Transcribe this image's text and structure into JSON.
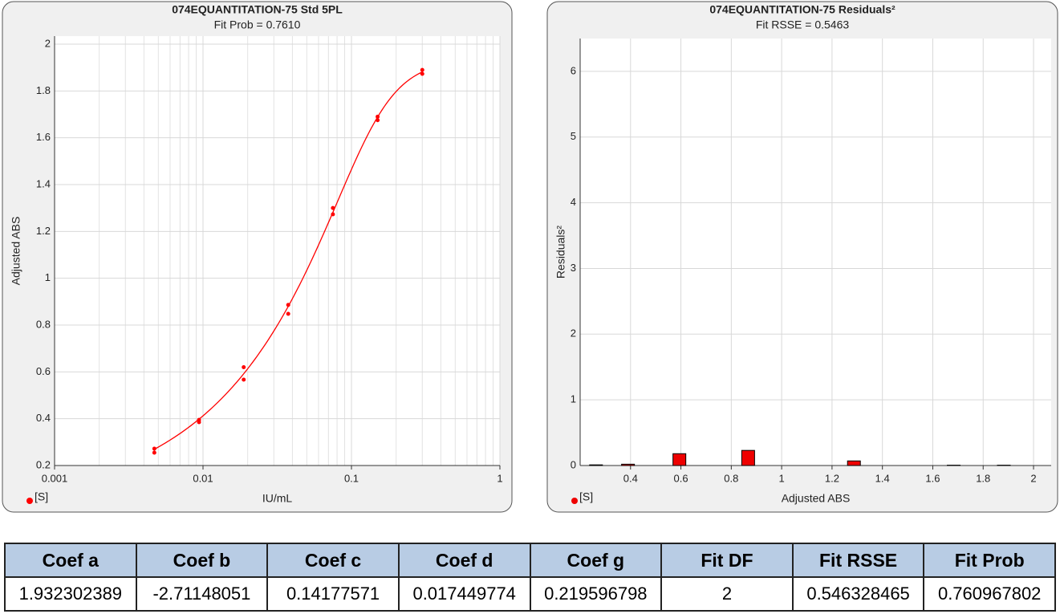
{
  "chart_data": [
    {
      "type": "scatter",
      "title": "074EQUANTITATION-75 Std 5PL",
      "subtitle": "Fit Prob = 0.7610",
      "x_label": "IU/mL",
      "y_label": "Adjusted ABS",
      "xlog": true,
      "grid": true,
      "fit_curve": "5PL",
      "xlim": [
        0.001,
        1
      ],
      "xticks": [
        0.001,
        0.01,
        0.1,
        1
      ],
      "ylim": [
        0.2,
        2
      ],
      "yticks": [
        0.2,
        0.4,
        0.6,
        0.8,
        1,
        1.2,
        1.4,
        1.6,
        1.8,
        2
      ],
      "series": [
        {
          "name": "[S]",
          "color": "#ff0000",
          "x": [
            0.0047,
            0.0047,
            0.0094,
            0.0094,
            0.0188,
            0.0188,
            0.0375,
            0.0375,
            0.075,
            0.075,
            0.15,
            0.15,
            0.3,
            0.3
          ],
          "values": [
            0.272,
            0.255,
            0.395,
            0.385,
            0.62,
            0.567,
            0.886,
            0.848,
            1.3,
            1.273,
            1.69,
            1.675,
            1.89,
            1.873
          ]
        }
      ]
    },
    {
      "type": "bar",
      "title": "074EQUANTITATION-75 Residuals²",
      "subtitle": "Fit RSSE = 0.5463",
      "x_label": "Adjusted ABS",
      "y_label": "Residuals²",
      "xlog": false,
      "grid": true,
      "xlim": [
        0.2,
        2.07
      ],
      "xticks": [
        0.4,
        0.6,
        0.8,
        1,
        1.2,
        1.4,
        1.6,
        1.8,
        2
      ],
      "ylim": [
        0,
        6.5
      ],
      "yticks": [
        0,
        1,
        2,
        3,
        4,
        5,
        6
      ],
      "series": [
        {
          "name": "[S]",
          "color": "#ee0000",
          "x": [
            0.263,
            0.39,
            0.594,
            0.867,
            1.287,
            1.683,
            1.882
          ],
          "values": [
            0.01,
            0.02,
            0.18,
            0.23,
            0.07,
            0.005,
            0.005
          ]
        }
      ]
    }
  ],
  "table": {
    "header": [
      "Coef a",
      "Coef b",
      "Coef c",
      "Coef d",
      "Coef g",
      "Fit DF",
      "Fit RSSE",
      "Fit Prob"
    ],
    "rows": [
      [
        1.932302389,
        -2.71148051,
        0.14177571,
        0.017449774,
        0.219596798,
        2,
        0.546328465,
        0.760967802
      ]
    ]
  }
}
